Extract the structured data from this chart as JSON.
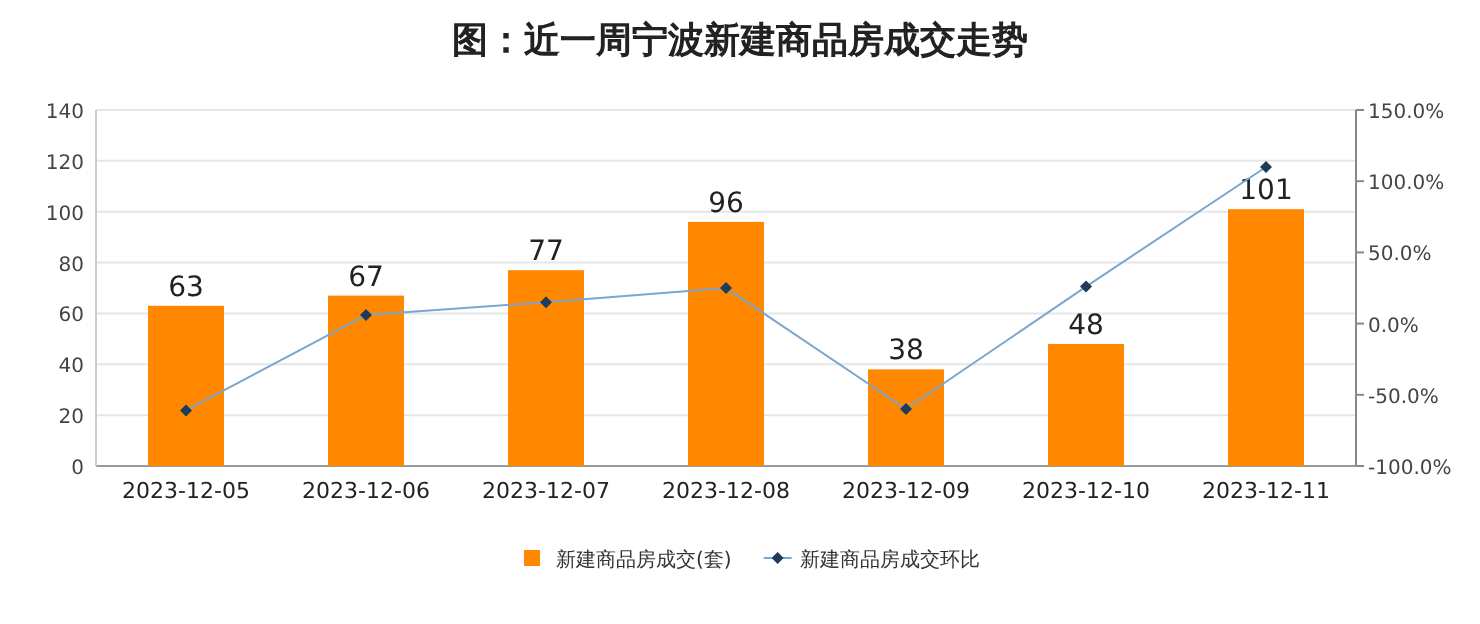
{
  "chart_data": {
    "type": "bar",
    "title": "图：近一周宁波新建商品房成交走势",
    "categories": [
      "2023-12-05",
      "2023-12-06",
      "2023-12-07",
      "2023-12-08",
      "2023-12-09",
      "2023-12-10",
      "2023-12-11"
    ],
    "series": [
      {
        "name": "新建商品房成交(套)",
        "color": "#ff8800",
        "values": [
          63,
          67,
          77,
          96,
          38,
          48,
          101
        ],
        "value_labels": [
          "63",
          "67",
          "77",
          "96",
          "38",
          "48",
          "101"
        ]
      },
      {
        "name": "新建商品房成交环比",
        "type": "line",
        "axis": "y2",
        "color": "#7aa6d0",
        "marker": "diamond",
        "values": [
          -61,
          6,
          15,
          25,
          -60,
          26,
          110
        ]
      }
    ],
    "ylim": [
      0,
      140
    ],
    "yticks": [
      0,
      20,
      40,
      60,
      80,
      100,
      120,
      140
    ],
    "y2lim": [
      -100,
      150
    ],
    "y2ticks": [
      {
        "value": -100,
        "label": "-100.0%"
      },
      {
        "value": -50,
        "label": "-50.0%"
      },
      {
        "value": 0,
        "label": "0.0%"
      },
      {
        "value": 50,
        "label": "50.0%"
      },
      {
        "value": 100,
        "label": "100.0%"
      },
      {
        "value": 150,
        "label": "150.0%"
      }
    ],
    "grid": "y",
    "legend": "bottom"
  }
}
